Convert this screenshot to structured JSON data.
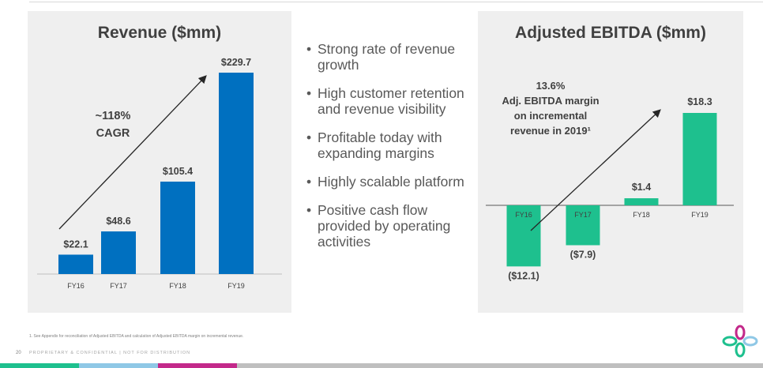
{
  "page": {
    "footnote": "1.   See Appendix for reconciliation of Adjusted EBITDA and calculation of Adjusted EBITDA margin on incremental revenue.",
    "page_number": "20",
    "confidential": "PROPRIETARY & CONFIDENTIAL  |  NOT FOR DISTRIBUTION",
    "colors": {
      "blue": "#0070c0",
      "green": "#1ec08e",
      "panel": "#efefef",
      "title": "#404040"
    },
    "brand_colors": [
      "#1ec08e",
      "#8fc8e6",
      "#c3298a",
      "#7f7f7f"
    ]
  },
  "bullets": [
    "Strong rate of revenue growth",
    "High customer retention and revenue visibility",
    "Profitable today with expanding margins",
    "Highly scalable platform",
    "Positive cash flow provided by operating activities"
  ],
  "chart_data": [
    {
      "type": "bar",
      "title": "Revenue ($mm)",
      "categories": [
        "FY16",
        "FY17",
        "FY18",
        "FY19"
      ],
      "values": [
        22.1,
        48.6,
        105.4,
        229.7
      ],
      "labels": [
        "$22.1",
        "$48.6",
        "$105.4",
        "$229.7"
      ],
      "ylim": [
        0,
        229.7
      ],
      "annotation": {
        "line1": "~118%",
        "line2": "CAGR"
      }
    },
    {
      "type": "bar",
      "title": "Adjusted EBITDA ($mm)",
      "categories": [
        "FY16",
        "FY17",
        "FY18",
        "FY19"
      ],
      "values": [
        -12.1,
        -7.9,
        1.4,
        18.3
      ],
      "labels": [
        "($12.1)",
        "($7.9)",
        "$1.4",
        "$18.3"
      ],
      "ylim": [
        -12.1,
        18.3
      ],
      "annotation": {
        "line1": "13.6%",
        "line2": "Adj. EBITDA margin",
        "line3": "on incremental",
        "line4": "revenue in 2019¹"
      }
    }
  ]
}
